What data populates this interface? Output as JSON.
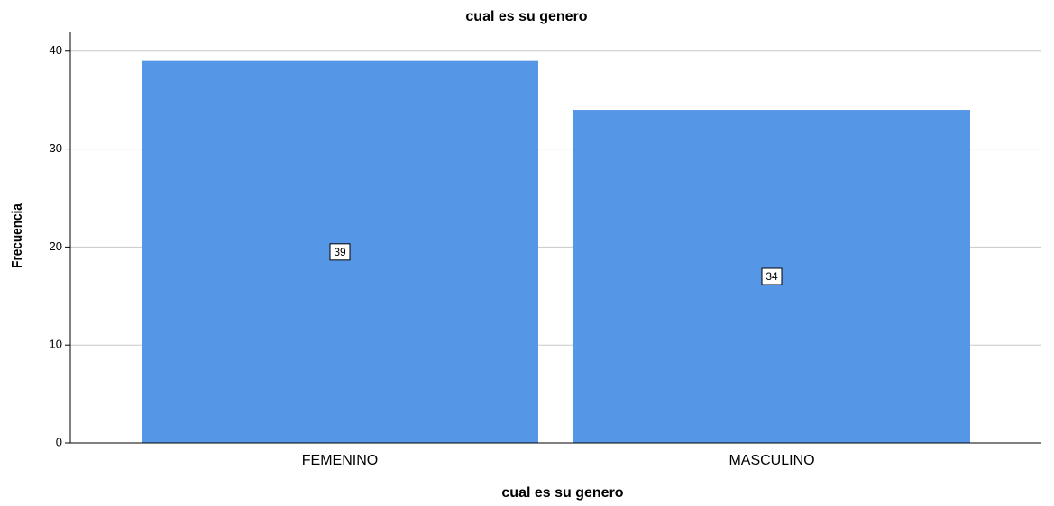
{
  "chart_data": {
    "type": "bar",
    "title": "cual es su genero",
    "x_label": "cual es su genero",
    "y_label": "Frecuencia",
    "categories": [
      "FEMENINO",
      "MASCULINO"
    ],
    "values": [
      39,
      34
    ],
    "color": "#5596e6",
    "ylim": [
      0,
      42
    ],
    "yticks": [
      0,
      10,
      20,
      30,
      40
    ],
    "grid": true
  }
}
